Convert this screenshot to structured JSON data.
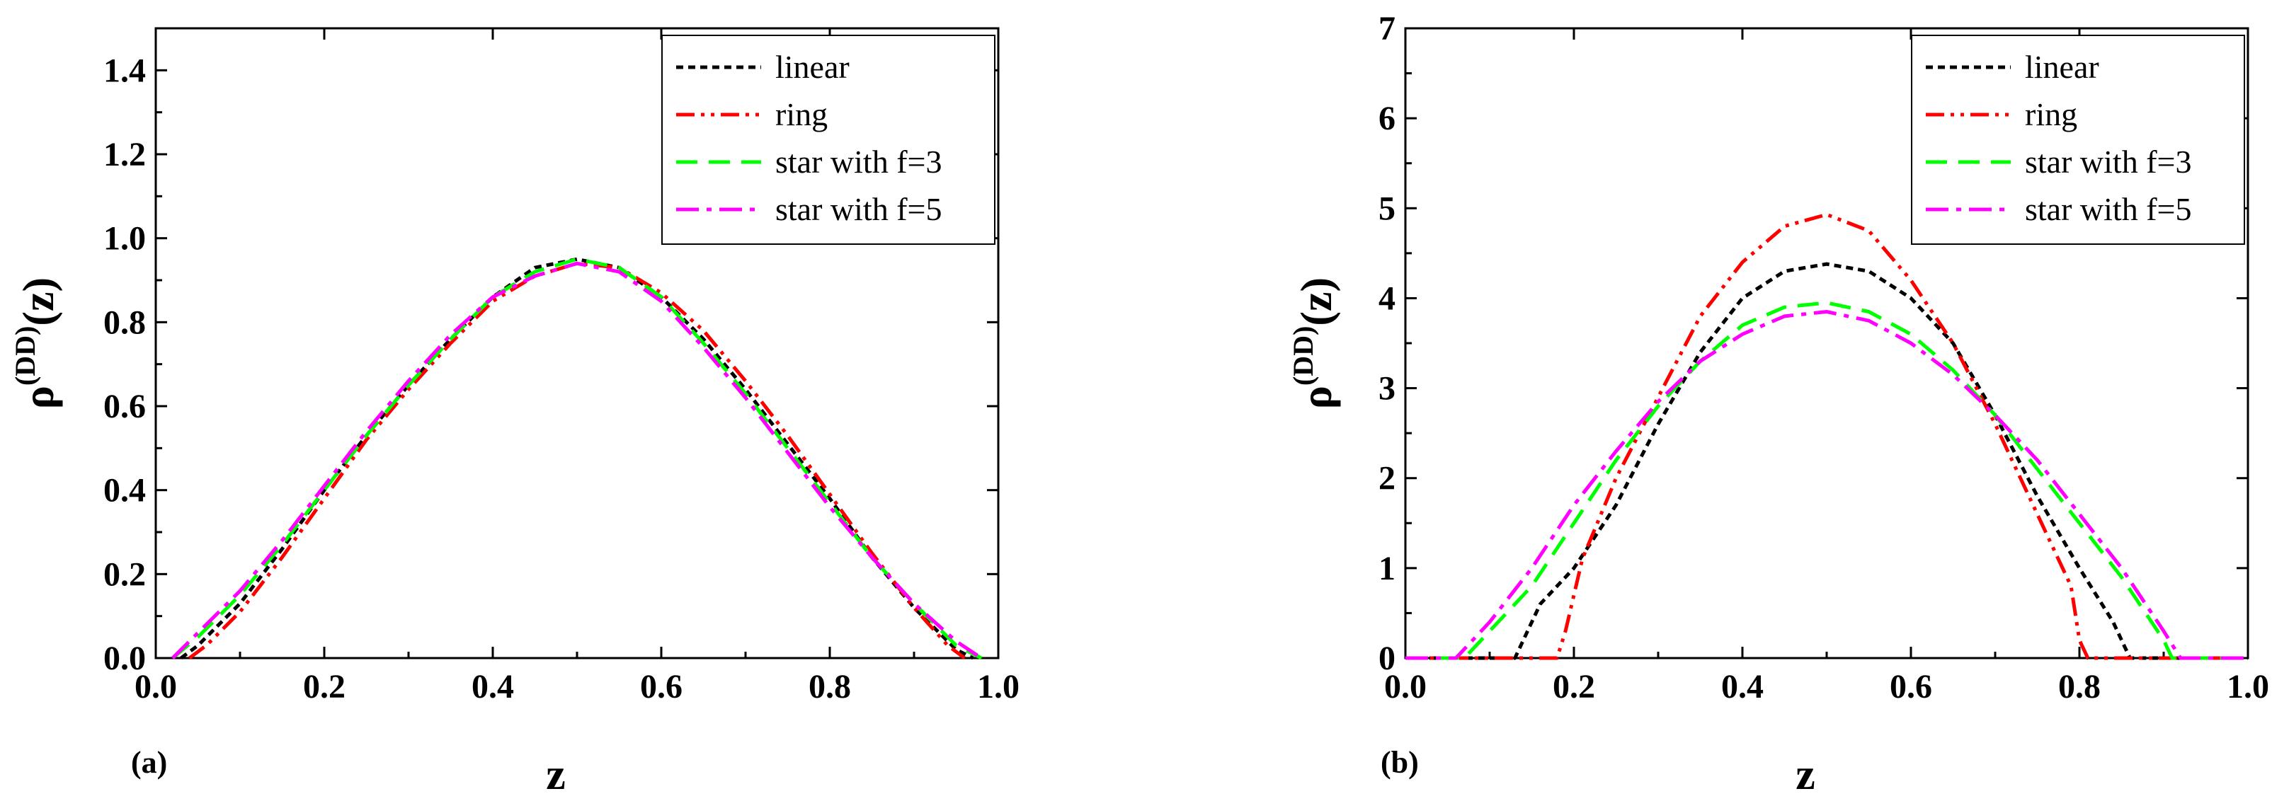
{
  "chart_data": [
    {
      "type": "line",
      "panel_label": "(a)",
      "xlabel": "z",
      "ylabel": {
        "base": "ρ",
        "sup": "(DD)",
        "tail": "(z)"
      },
      "xlim": [
        0,
        1
      ],
      "ylim": [
        0,
        1.5
      ],
      "xticks": [
        0,
        0.2,
        0.4,
        0.6,
        0.8,
        1.0
      ],
      "xtick_labels": [
        "0.0",
        "0.2",
        "0.4",
        "0.6",
        "0.8",
        "1.0"
      ],
      "yticks": [
        0,
        0.2,
        0.4,
        0.6,
        0.8,
        1.0,
        1.2,
        1.4
      ],
      "ytick_labels": [
        "0.0",
        "0.2",
        "0.4",
        "0.6",
        "0.8",
        "1.0",
        "1.2",
        "1.4"
      ],
      "legend_position": "top-right",
      "series": [
        {
          "name": "linear",
          "legend_label": "linear",
          "color": "#000000",
          "dash": "short-dash",
          "x": [
            0.03,
            0.05,
            0.1,
            0.15,
            0.2,
            0.25,
            0.3,
            0.35,
            0.4,
            0.45,
            0.5,
            0.55,
            0.6,
            0.65,
            0.7,
            0.75,
            0.8,
            0.85,
            0.9,
            0.95,
            0.97
          ],
          "y": [
            0.0,
            0.03,
            0.13,
            0.26,
            0.4,
            0.53,
            0.65,
            0.76,
            0.86,
            0.93,
            0.95,
            0.93,
            0.86,
            0.76,
            0.64,
            0.51,
            0.38,
            0.24,
            0.12,
            0.02,
            0.0
          ]
        },
        {
          "name": "ring",
          "legend_label": "ring",
          "color": "#ff0000",
          "dash": "dash-dot-dot",
          "x": [
            0.04,
            0.06,
            0.1,
            0.15,
            0.2,
            0.25,
            0.3,
            0.35,
            0.4,
            0.45,
            0.5,
            0.55,
            0.6,
            0.65,
            0.7,
            0.75,
            0.8,
            0.85,
            0.9,
            0.94,
            0.96
          ],
          "y": [
            0.0,
            0.03,
            0.11,
            0.24,
            0.38,
            0.52,
            0.64,
            0.75,
            0.85,
            0.91,
            0.94,
            0.93,
            0.87,
            0.78,
            0.66,
            0.53,
            0.39,
            0.25,
            0.12,
            0.03,
            0.0
          ]
        },
        {
          "name": "star with f=3",
          "legend_label": "star with f=3",
          "color": "#00ff00",
          "dash": "long-dash",
          "x": [
            0.02,
            0.05,
            0.1,
            0.15,
            0.2,
            0.25,
            0.3,
            0.35,
            0.4,
            0.45,
            0.5,
            0.55,
            0.6,
            0.65,
            0.7,
            0.75,
            0.8,
            0.85,
            0.9,
            0.95,
            0.98
          ],
          "y": [
            0.0,
            0.05,
            0.15,
            0.27,
            0.4,
            0.53,
            0.65,
            0.76,
            0.86,
            0.92,
            0.95,
            0.93,
            0.86,
            0.75,
            0.63,
            0.5,
            0.37,
            0.24,
            0.13,
            0.03,
            0.0
          ]
        },
        {
          "name": "star with f=5",
          "legend_label": "star with f=5",
          "color": "#ff00ff",
          "dash": "dash-dot",
          "x": [
            0.02,
            0.05,
            0.1,
            0.15,
            0.2,
            0.25,
            0.3,
            0.35,
            0.4,
            0.45,
            0.5,
            0.55,
            0.6,
            0.65,
            0.7,
            0.75,
            0.8,
            0.85,
            0.9,
            0.95,
            0.98
          ],
          "y": [
            0.0,
            0.06,
            0.16,
            0.28,
            0.41,
            0.54,
            0.66,
            0.77,
            0.86,
            0.91,
            0.94,
            0.92,
            0.85,
            0.74,
            0.62,
            0.49,
            0.36,
            0.24,
            0.13,
            0.04,
            0.0
          ]
        }
      ]
    },
    {
      "type": "line",
      "panel_label": "(b)",
      "xlabel": "z",
      "ylabel": {
        "base": "ρ",
        "sup": "(DD)",
        "tail": "(z)"
      },
      "xlim": [
        0,
        1
      ],
      "ylim": [
        0,
        7
      ],
      "xticks": [
        0,
        0.2,
        0.4,
        0.6,
        0.8,
        1.0
      ],
      "xtick_labels": [
        "0.0",
        "0.2",
        "0.4",
        "0.6",
        "0.8",
        "1.0"
      ],
      "yticks": [
        0,
        1,
        2,
        3,
        4,
        5,
        6,
        7
      ],
      "ytick_labels": [
        "0",
        "1",
        "2",
        "3",
        "4",
        "5",
        "6",
        "7"
      ],
      "legend_position": "top-right",
      "series": [
        {
          "name": "linear",
          "legend_label": "linear",
          "color": "#000000",
          "dash": "short-dash",
          "x": [
            0.0,
            0.13,
            0.14,
            0.16,
            0.2,
            0.25,
            0.3,
            0.35,
            0.4,
            0.45,
            0.5,
            0.55,
            0.6,
            0.65,
            0.7,
            0.75,
            0.8,
            0.84,
            0.86,
            1.0
          ],
          "y": [
            0.0,
            0.0,
            0.2,
            0.6,
            1.0,
            1.7,
            2.6,
            3.4,
            4.0,
            4.3,
            4.38,
            4.3,
            4.0,
            3.5,
            2.7,
            1.8,
            1.0,
            0.4,
            0.0,
            0.0
          ]
        },
        {
          "name": "ring",
          "legend_label": "ring",
          "color": "#ff0000",
          "dash": "dash-dot-dot",
          "x": [
            0.0,
            0.18,
            0.19,
            0.21,
            0.25,
            0.3,
            0.35,
            0.4,
            0.45,
            0.5,
            0.55,
            0.6,
            0.65,
            0.7,
            0.75,
            0.79,
            0.8,
            0.81,
            1.0
          ],
          "y": [
            0.0,
            0.0,
            0.3,
            1.1,
            2.0,
            2.9,
            3.8,
            4.4,
            4.8,
            4.93,
            4.75,
            4.2,
            3.5,
            2.6,
            1.6,
            0.8,
            0.2,
            0.0,
            0.0
          ]
        },
        {
          "name": "star with f=3",
          "legend_label": "star with f=3",
          "color": "#00ff00",
          "dash": "long-dash",
          "x": [
            0.0,
            0.07,
            0.1,
            0.15,
            0.2,
            0.25,
            0.3,
            0.35,
            0.4,
            0.45,
            0.5,
            0.55,
            0.6,
            0.65,
            0.7,
            0.75,
            0.8,
            0.85,
            0.9,
            0.91,
            1.0
          ],
          "y": [
            0.0,
            0.0,
            0.3,
            0.8,
            1.5,
            2.2,
            2.8,
            3.3,
            3.7,
            3.9,
            3.95,
            3.85,
            3.6,
            3.2,
            2.7,
            2.1,
            1.5,
            0.9,
            0.2,
            0.0,
            0.0
          ]
        },
        {
          "name": "star with f=5",
          "legend_label": "star with f=5",
          "color": "#ff00ff",
          "dash": "dash-dot",
          "x": [
            0.0,
            0.06,
            0.1,
            0.15,
            0.2,
            0.25,
            0.3,
            0.35,
            0.4,
            0.45,
            0.5,
            0.55,
            0.6,
            0.65,
            0.7,
            0.75,
            0.8,
            0.85,
            0.9,
            0.92,
            1.0
          ],
          "y": [
            0.0,
            0.0,
            0.4,
            1.0,
            1.7,
            2.3,
            2.85,
            3.3,
            3.6,
            3.8,
            3.85,
            3.75,
            3.5,
            3.15,
            2.7,
            2.2,
            1.6,
            1.0,
            0.3,
            0.0,
            0.0
          ]
        }
      ]
    }
  ]
}
